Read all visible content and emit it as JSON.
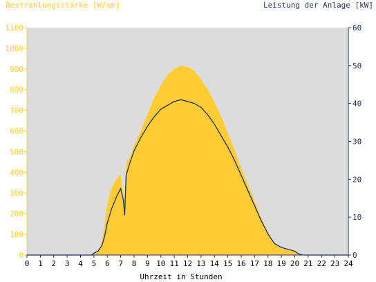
{
  "chart_data": {
    "type": "area",
    "left_axis_label": "Bestrahlungsstärke [W/qm]",
    "right_axis_label": "Leistung der Anlage [kW]",
    "xlabel": "Uhrzeit in Stunden",
    "x_ticks": [
      "0",
      "1",
      "2",
      "3",
      "4",
      "5",
      "6",
      "7",
      "8",
      "9",
      "10",
      "11",
      "12",
      "13",
      "14",
      "15",
      "16",
      "17",
      "18",
      "19",
      "20",
      "21",
      "22",
      "23",
      "24"
    ],
    "xlim": [
      0,
      24
    ],
    "ylim_left": [
      0,
      1100
    ],
    "ylim_right": [
      0,
      60
    ],
    "y_ticks_left": [
      "0",
      "100",
      "200",
      "300",
      "400",
      "500",
      "600",
      "700",
      "800",
      "900",
      "1000",
      "1100"
    ],
    "y_ticks_right": [
      "0",
      "10",
      "20",
      "30",
      "40",
      "50",
      "60"
    ],
    "colors": {
      "plot_background": "#dcdcdc",
      "irradiance_fill": "#ffcc33",
      "power_line": "#1f2f5f",
      "left_axis_text": "#ffcc33",
      "right_axis_text": "#1f2f5f",
      "x_axis_text": "#000000"
    },
    "series": [
      {
        "axis": "left",
        "style": "area",
        "x": [
          0,
          4.8,
          5.0,
          5.3,
          5.6,
          5.8,
          6.0,
          6.3,
          6.7,
          7.0,
          7.1,
          7.3,
          7.4,
          7.5,
          7.7,
          8.0,
          8.5,
          9.0,
          9.5,
          10.0,
          10.5,
          11.0,
          11.5,
          12.0,
          12.5,
          13.0,
          13.5,
          14.0,
          14.5,
          15.0,
          15.5,
          16.0,
          16.5,
          17.0,
          17.5,
          18.0,
          18.5,
          19.0,
          19.5,
          20.0,
          20.3,
          20.6,
          21.0,
          24
        ],
        "values": [
          0,
          0,
          10,
          20,
          60,
          150,
          250,
          320,
          370,
          390,
          330,
          250,
          420,
          460,
          470,
          530,
          600,
          680,
          760,
          820,
          870,
          900,
          915,
          910,
          890,
          850,
          800,
          740,
          670,
          590,
          510,
          420,
          340,
          260,
          180,
          110,
          55,
          30,
          25,
          15,
          5,
          0,
          0,
          0
        ]
      },
      {
        "axis": "right",
        "style": "line",
        "x": [
          0,
          4.8,
          5.0,
          5.3,
          5.6,
          5.8,
          6.0,
          6.3,
          6.7,
          7.0,
          7.1,
          7.2,
          7.3,
          7.4,
          7.7,
          8.0,
          8.5,
          9.0,
          9.5,
          10.0,
          10.5,
          11.0,
          11.5,
          12.0,
          12.5,
          13.0,
          13.5,
          14.0,
          14.5,
          15.0,
          15.5,
          16.0,
          16.5,
          17.0,
          17.5,
          18.0,
          18.5,
          19.0,
          19.5,
          20.0,
          20.3,
          20.6,
          21.0,
          24
        ],
        "values": [
          0,
          0,
          0.5,
          1,
          2.5,
          5,
          8.5,
          12,
          15.5,
          17.5,
          16,
          14.5,
          10.5,
          21,
          24.5,
          27.5,
          31,
          34,
          36.5,
          38.5,
          39.5,
          40.5,
          41,
          40.5,
          40,
          39,
          37,
          34.5,
          31.5,
          28.5,
          25,
          21,
          17,
          13,
          9,
          5.5,
          3,
          2,
          1.5,
          1,
          0.3,
          0,
          0,
          0
        ]
      }
    ]
  }
}
